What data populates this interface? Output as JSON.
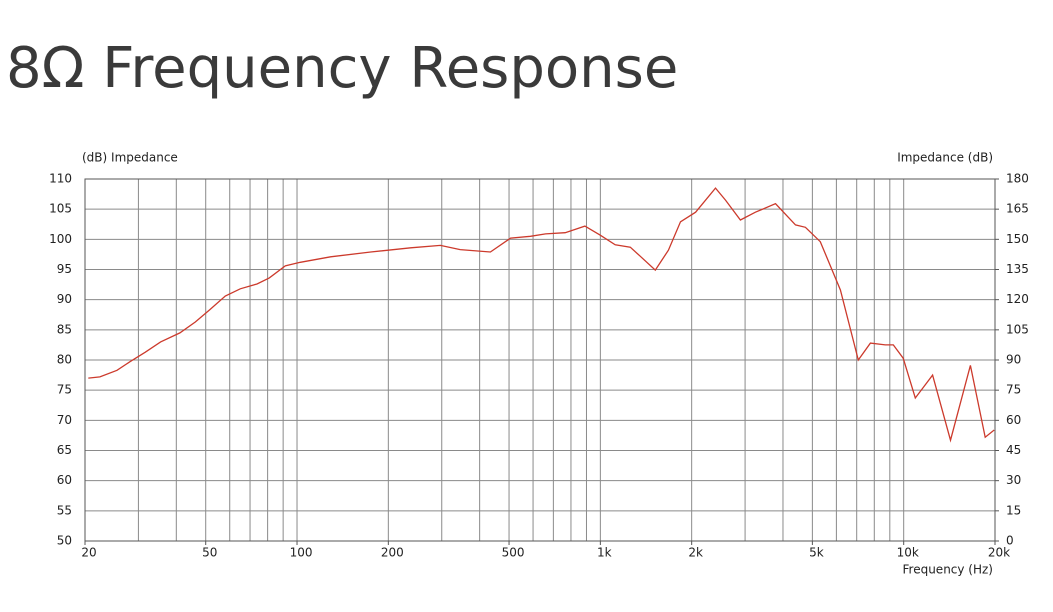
{
  "chart_data": {
    "type": "line",
    "title": "8Ω Frequency Response",
    "ylabel": "(dB) Impedance",
    "y2label": "Impedance (dB)",
    "xlabel": "Frequency (Hz)",
    "xscale": "log",
    "grid": true,
    "xlim": [
      20,
      20000
    ],
    "xticks": [
      20,
      50,
      100,
      200,
      500,
      {
        "value": 1000,
        "label": "1k"
      },
      {
        "value": 2000,
        "label": "2k"
      },
      {
        "value": 5000,
        "label": "5k"
      },
      {
        "value": 10000,
        "label": "10k"
      },
      {
        "value": 20000,
        "label": "20k"
      }
    ],
    "ylim": [
      50,
      110
    ],
    "yticks": [
      50,
      55,
      60,
      65,
      70,
      75,
      80,
      85,
      90,
      95,
      100,
      105,
      110
    ],
    "y2lim": [
      0,
      180
    ],
    "y2ticks": [
      0,
      15,
      30,
      45,
      60,
      75,
      90,
      105,
      120,
      135,
      150,
      165,
      180
    ],
    "x": [
      20.5,
      22.4,
      25.5,
      28.1,
      31.6,
      35.5,
      41.1,
      46.2,
      51.5,
      58,
      65,
      73.8,
      81,
      91.5,
      102.5,
      129,
      175,
      237,
      297,
      345,
      434,
      506,
      588,
      660,
      766,
      889,
      998,
      1119,
      1255,
      1353,
      1518,
      1676,
      1838,
      2060,
      2396,
      2586,
      2895,
      3244,
      3778,
      4400,
      4742,
      5312,
      6185,
      7083,
      7766,
      8700,
      9240,
      9965,
      10920,
      12450,
      14270,
      16590,
      18570,
      19880
    ],
    "series": [
      {
        "color": "#cc3a2c",
        "values": [
          77,
          77.2,
          78.3,
          79.7,
          81.3,
          83,
          84.5,
          86.3,
          88.3,
          90.6,
          91.8,
          92.6,
          93.6,
          95.6,
          96.2,
          97.1,
          97.9,
          98.6,
          99,
          98.3,
          97.9,
          100.2,
          100.5,
          100.9,
          101.1,
          102.2,
          100.7,
          99.1,
          98.7,
          97.2,
          94.9,
          98.2,
          102.9,
          104.5,
          108.5,
          106.5,
          103.2,
          104.5,
          105.9,
          102.4,
          102,
          99.6,
          91.6,
          80,
          82.8,
          82.5,
          82.5,
          80.3,
          73.7,
          77.5,
          66.7,
          79.1,
          67.2,
          68.4
        ]
      }
    ]
  }
}
